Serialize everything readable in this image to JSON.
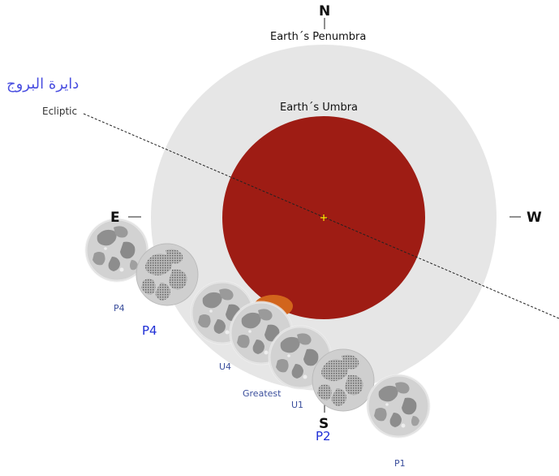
{
  "compass": {
    "north": "N",
    "south": "S",
    "east": "E",
    "west": "W"
  },
  "shadows": {
    "penumbra_label": "Earth´s Penumbra",
    "umbra_label": "Earth´s Umbra"
  },
  "ecliptic": {
    "label": "Ecliptic",
    "arabic_label": "دايرة البروج"
  },
  "moon_positions": {
    "p4_small": "P4",
    "p4_large": "P4",
    "u4": "U4",
    "greatest": "Greatest",
    "u1": "U1",
    "p2": "P2",
    "p1": "P1"
  },
  "colors": {
    "penumbra": "#e6e6e6",
    "umbra": "#9e1c14",
    "moon": "#cfcfcf",
    "maria": "#8d8d8d",
    "center_mark": "#ffee00"
  }
}
